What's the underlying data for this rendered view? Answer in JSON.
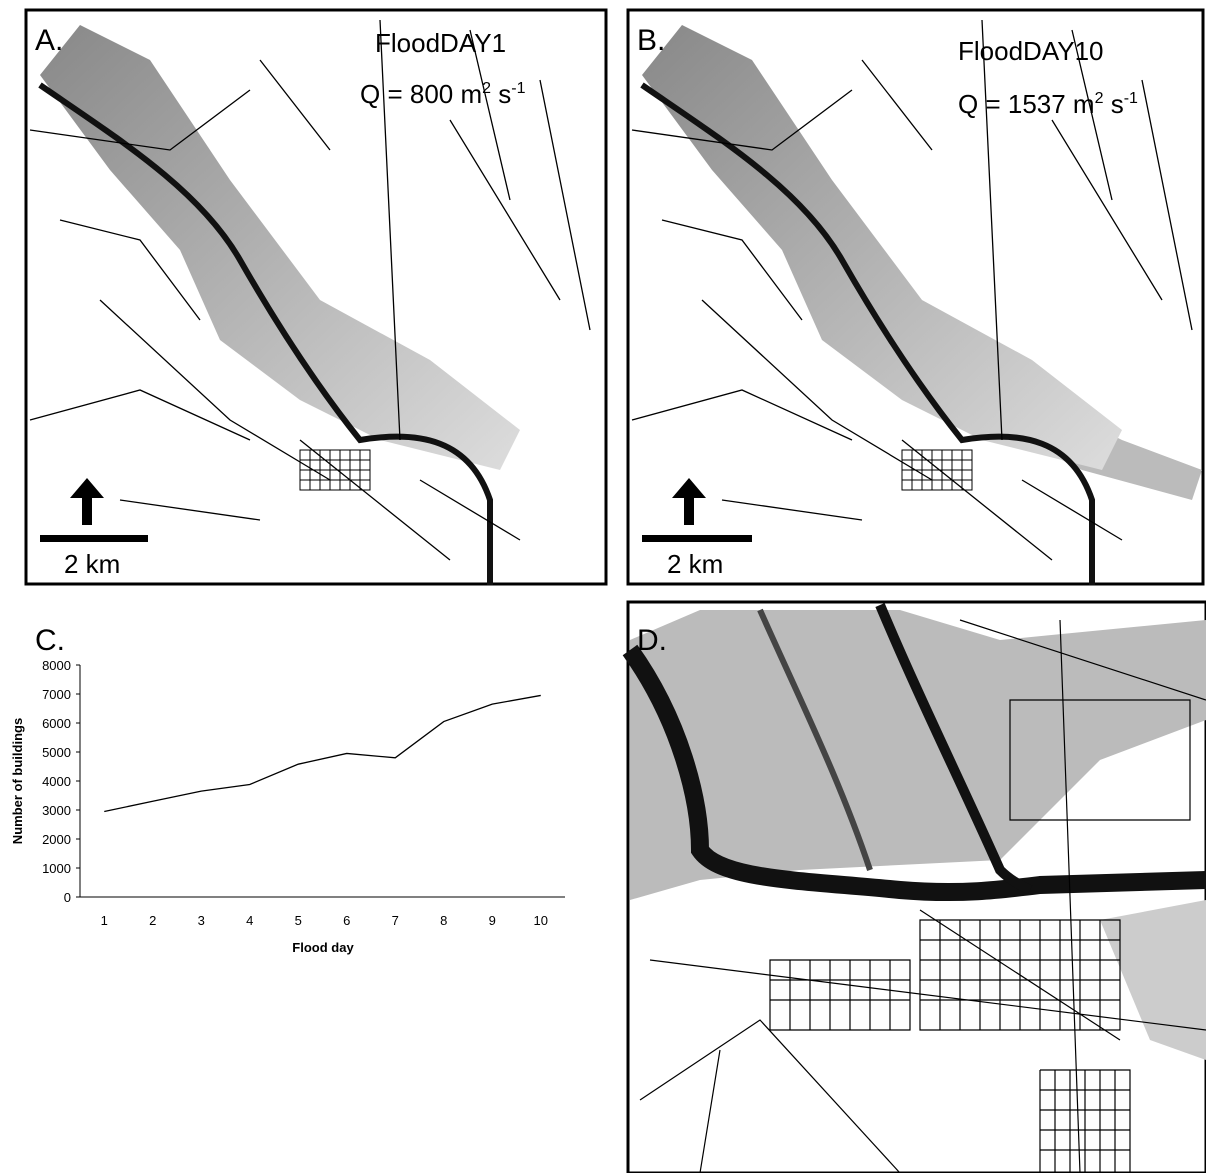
{
  "panels": {
    "a": {
      "label": "A.",
      "title": "FloodDAY1",
      "q": {
        "text": "Q = 800 m",
        "sup1": "2",
        "mid": " s",
        "sup2": "-1"
      },
      "scale": "2 km"
    },
    "b": {
      "label": "B.",
      "title": "FloodDAY10",
      "q": {
        "text": "Q = 1537 m",
        "sup1": "2",
        "mid": " s",
        "sup2": "-1"
      },
      "scale": "2 km"
    },
    "c": {
      "label": "C."
    },
    "d": {
      "label": "D."
    }
  },
  "chart_data": {
    "type": "line",
    "x_label": "Flood day",
    "y_label": "Number of buildings",
    "categories": [
      "1",
      "2",
      "3",
      "4",
      "5",
      "6",
      "7",
      "8",
      "9",
      "10"
    ],
    "values": [
      2950,
      3300,
      3650,
      3880,
      4580,
      4950,
      4800,
      6050,
      6650,
      6950
    ],
    "color": "#000000",
    "ylim": [
      0,
      8000
    ],
    "yticks": [
      0,
      1000,
      2000,
      3000,
      4000,
      5000,
      6000,
      7000,
      8000
    ],
    "grid": false
  }
}
